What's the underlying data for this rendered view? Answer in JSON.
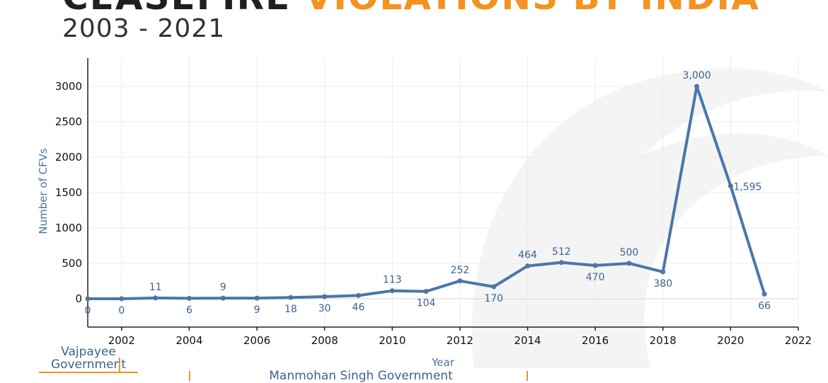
{
  "header": {
    "title_dark": "CEASEFIRE",
    "title_accent": "VIOLATIONS BY INDIA",
    "subtitle": "2003 - 2021"
  },
  "colors": {
    "accent": "#f39321",
    "line": "#4b76a8",
    "title": "#1f1f1f"
  },
  "chart_data": {
    "type": "line",
    "title": "CEASEFIRE VIOLATIONS BY INDIA",
    "subtitle": "2003 - 2021",
    "xlabel": "Year",
    "ylabel": "Number of CFVs",
    "xlim": [
      2001,
      2022
    ],
    "ylim": [
      -400,
      3400
    ],
    "x_ticks": [
      2002,
      2004,
      2006,
      2008,
      2010,
      2012,
      2014,
      2016,
      2018,
      2020,
      2022
    ],
    "y_ticks": [
      0,
      500,
      1000,
      1500,
      2000,
      2500,
      3000
    ],
    "grid": true,
    "series": [
      {
        "x": [
          2001,
          2002,
          2003,
          2004,
          2005,
          2006,
          2007,
          2008,
          2009,
          2010,
          2011,
          2012,
          2013,
          2014,
          2015,
          2016,
          2017,
          2018,
          2019,
          2020,
          2021
        ],
        "values": [
          0,
          0,
          11,
          6,
          9,
          9,
          18,
          30,
          46,
          113,
          104,
          252,
          170,
          464,
          512,
          470,
          500,
          380,
          3000,
          1595,
          66
        ],
        "labels": [
          "0",
          "0",
          "11",
          "6",
          "9",
          "9",
          "18",
          "30",
          "46",
          "113",
          "104",
          "252",
          "170",
          "464",
          "512",
          "470",
          "500",
          "380",
          "3,000",
          "1,595",
          "66"
        ],
        "label_pos": [
          "below",
          "below",
          "above",
          "below",
          "above",
          "below",
          "below",
          "below",
          "below",
          "above",
          "below",
          "above",
          "below",
          "above",
          "above",
          "below",
          "above",
          "below",
          "above",
          "right",
          "below"
        ]
      }
    ]
  },
  "governments": {
    "vajpayee_line1": "Vajpayee",
    "vajpayee_line2": "Government",
    "manmohan": "Manmohan Singh Government"
  }
}
